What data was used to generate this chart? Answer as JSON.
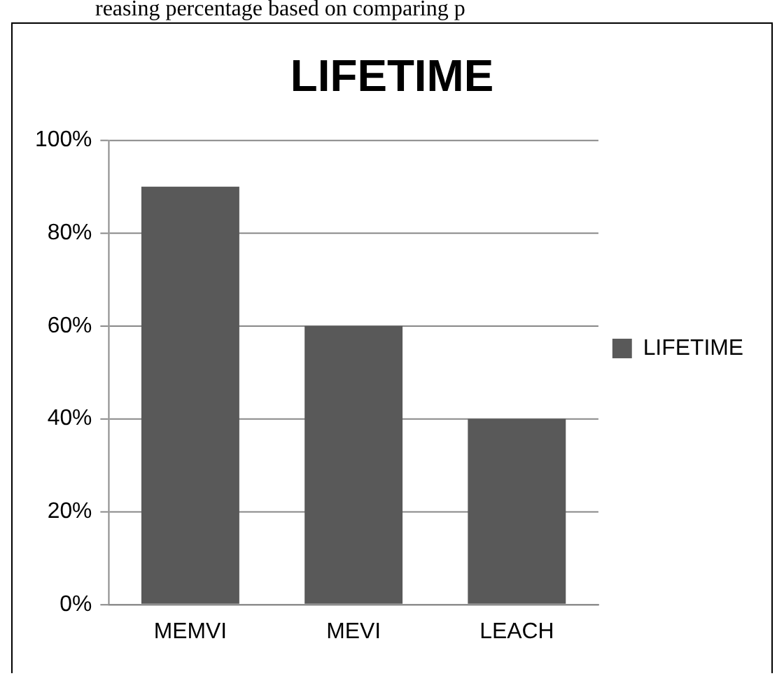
{
  "chart_data": {
    "type": "bar",
    "title": "LIFETIME",
    "annotations": [
      "reasing percentage based on comparing p"
    ],
    "categories": [
      "MEMVI",
      "MEVI",
      "LEACH"
    ],
    "series": [
      {
        "name": "LIFETIME",
        "color": "#595959",
        "values": [
          90,
          60,
          40
        ]
      }
    ],
    "ylim": [
      0,
      100
    ],
    "yticks": [
      {
        "value": 0,
        "label": "0%"
      },
      {
        "value": 20,
        "label": "20%"
      },
      {
        "value": 40,
        "label": "40%"
      },
      {
        "value": 60,
        "label": "60%"
      },
      {
        "value": 80,
        "label": "80%"
      },
      {
        "value": 100,
        "label": "100%"
      }
    ],
    "grid": "y",
    "legend": "right"
  }
}
